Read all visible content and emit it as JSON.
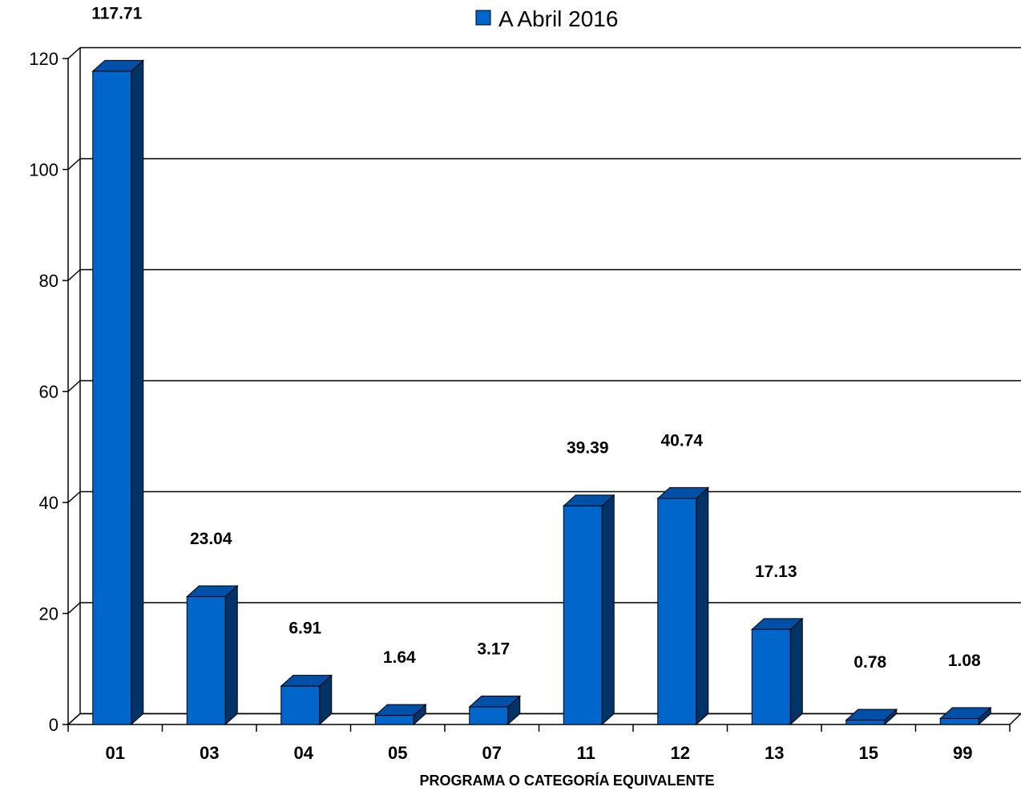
{
  "chart_data": {
    "type": "bar",
    "categories": [
      "01",
      "03",
      "04",
      "05",
      "07",
      "11",
      "12",
      "13",
      "15",
      "99"
    ],
    "series": [
      {
        "name": "A Abril 2016",
        "values": [
          117.71,
          23.04,
          6.91,
          1.64,
          3.17,
          39.39,
          40.74,
          17.13,
          0.78,
          1.08
        ],
        "color": "#0066CC"
      }
    ],
    "data_labels": [
      "117.71",
      "23.04",
      "6.91",
      "1.64",
      "3.17",
      "39.39",
      "40.74",
      "17.13",
      "0.78",
      "1.08"
    ],
    "title": "",
    "xlabel": "PROGRAMA O CATEGORÍA EQUIVALENTE",
    "ylabel": "",
    "ylim": [
      0,
      120
    ],
    "yticks": [
      "0",
      "20",
      "40",
      "60",
      "80",
      "100",
      "120"
    ],
    "grid": true,
    "legend_position": "top",
    "style": "3d-bar",
    "colors": {
      "bar_front": "#0066CC",
      "bar_top": "#0050A8",
      "bar_side": "#003366",
      "grid": "#000000"
    }
  }
}
